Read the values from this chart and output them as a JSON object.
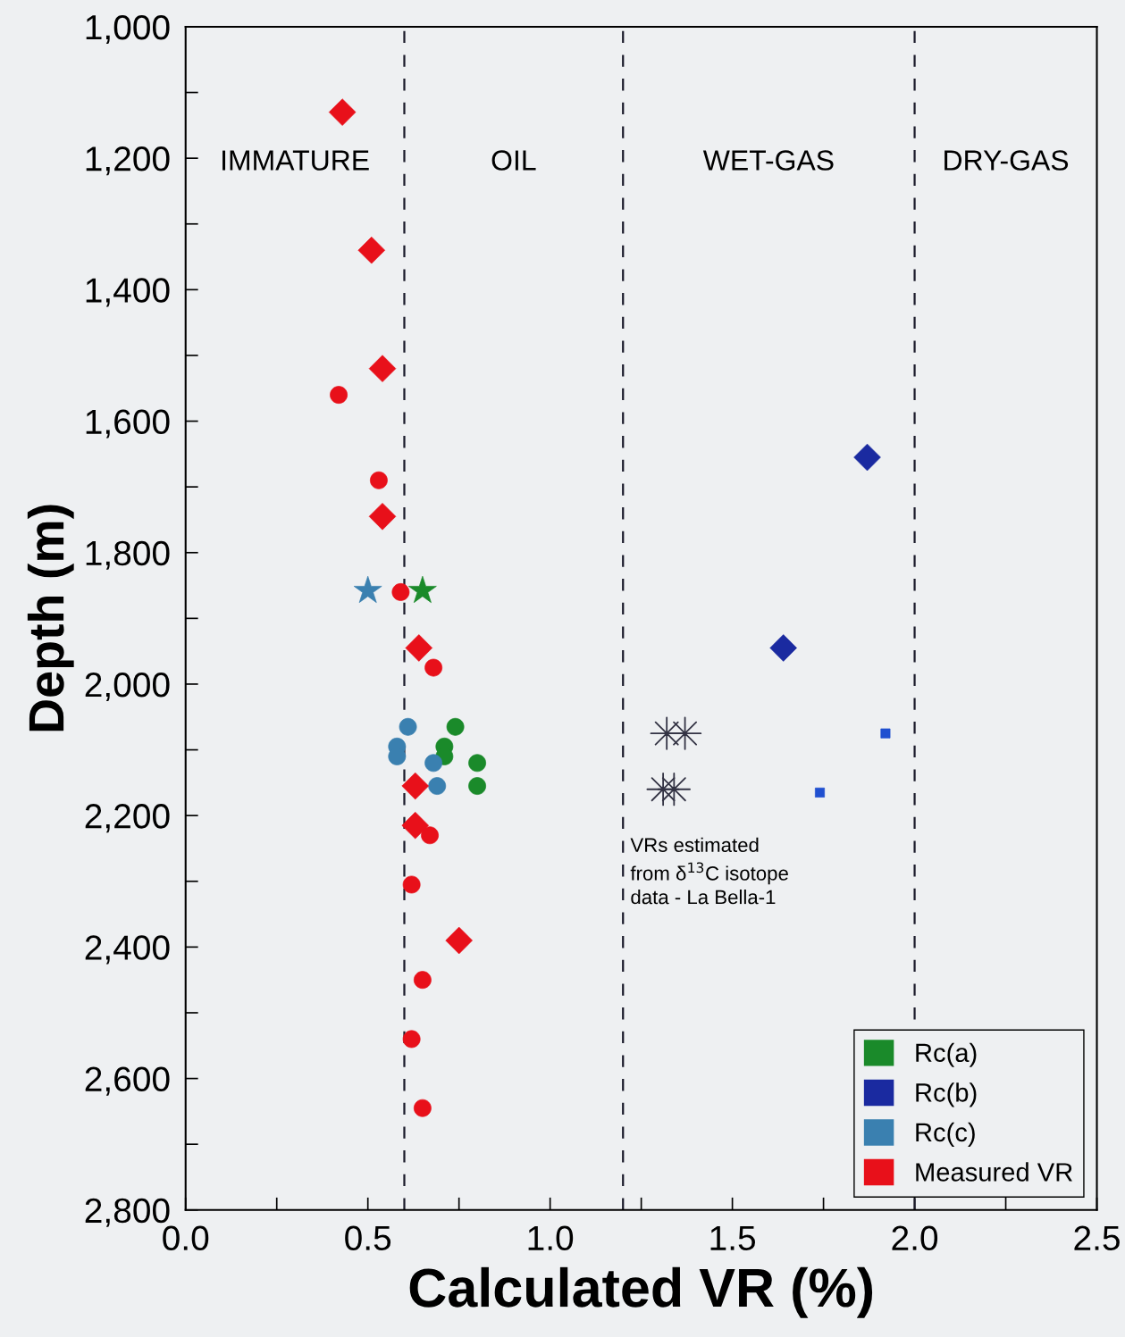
{
  "chart_data": {
    "type": "scatter",
    "xlabel": "Calculated VR (%)",
    "ylabel": "Depth (m)",
    "xlim": [
      0,
      2.5
    ],
    "ylim": [
      2800,
      1000
    ],
    "xticks": [
      {
        "value": 0,
        "label": "0.0"
      },
      {
        "value": 0.25,
        "label": null
      },
      {
        "value": 0.5,
        "label": "0.5"
      },
      {
        "value": 0.75,
        "label": null
      },
      {
        "value": 1.0,
        "label": "1.0"
      },
      {
        "value": 1.25,
        "label": null
      },
      {
        "value": 1.5,
        "label": "1.5"
      },
      {
        "value": 1.75,
        "label": null
      },
      {
        "value": 2.0,
        "label": "2.0"
      },
      {
        "value": 2.25,
        "label": null
      },
      {
        "value": 2.5,
        "label": "2.5"
      }
    ],
    "yticks": [
      {
        "value": 1000,
        "label": "1,000"
      },
      {
        "value": 1100,
        "label": null
      },
      {
        "value": 1200,
        "label": "1,200"
      },
      {
        "value": 1300,
        "label": null
      },
      {
        "value": 1400,
        "label": "1,400"
      },
      {
        "value": 1500,
        "label": null
      },
      {
        "value": 1600,
        "label": "1,600"
      },
      {
        "value": 1700,
        "label": null
      },
      {
        "value": 1800,
        "label": "1,800"
      },
      {
        "value": 1900,
        "label": null
      },
      {
        "value": 2000,
        "label": "2,000"
      },
      {
        "value": 2100,
        "label": null
      },
      {
        "value": 2200,
        "label": "2,200"
      },
      {
        "value": 2300,
        "label": null
      },
      {
        "value": 2400,
        "label": "2,400"
      },
      {
        "value": 2500,
        "label": null
      },
      {
        "value": 2600,
        "label": "2,600"
      },
      {
        "value": 2700,
        "label": null
      },
      {
        "value": 2800,
        "label": "2,800"
      }
    ],
    "grid": false,
    "legend": "bottom right",
    "series": [
      {
        "name": "Rc(a)",
        "color": "#1a8a2a",
        "marker": "circle",
        "x": [
          0.74,
          0.71,
          0.71,
          0.8,
          0.8
        ],
        "values": [
          2065,
          2095,
          2110,
          2120,
          2155
        ]
      },
      {
        "name": "Rc(b)",
        "color": "#1a2aa0",
        "marker": "diamond",
        "x": [
          1.87,
          1.64
        ],
        "values": [
          1655,
          1945
        ]
      },
      {
        "name": "Rc(c)",
        "color": "#3a80b0",
        "marker": "circle",
        "x": [
          0.61,
          0.58,
          0.58,
          0.68,
          0.69
        ],
        "values": [
          2065,
          2095,
          2110,
          2120,
          2155
        ]
      },
      {
        "name": "Measured VR",
        "color": "#e8101a",
        "marker": "diamond",
        "x": [
          0.43,
          0.51,
          0.54,
          0.54,
          0.64,
          0.63,
          0.63,
          0.75
        ],
        "values": [
          1130,
          1340,
          1520,
          1745,
          1945,
          2155,
          2215,
          2390
        ]
      },
      {
        "color": "#e8101a",
        "marker": "circle",
        "x": [
          0.42,
          0.53,
          0.59,
          0.68,
          0.67,
          0.62,
          0.65,
          0.62,
          0.65
        ],
        "values": [
          1560,
          1690,
          1860,
          1975,
          2230,
          2305,
          2450,
          2540,
          2645
        ]
      },
      {
        "color": "#1a8a2a",
        "marker": "star",
        "x": [
          0.65
        ],
        "values": [
          1858
        ]
      },
      {
        "color": "#3a80b0",
        "marker": "star",
        "x": [
          0.5
        ],
        "values": [
          1858
        ]
      },
      {
        "color": "#2050d0",
        "marker": "square",
        "x": [
          1.92,
          1.74
        ],
        "values": [
          2075,
          2165
        ]
      },
      {
        "color": "#333344",
        "marker": "cross",
        "x": [
          1.32,
          1.37,
          1.31,
          1.34
        ],
        "values": [
          2075,
          2075,
          2160,
          2160
        ]
      }
    ],
    "ref_lines": [
      {
        "axis": "x",
        "value": 0.6,
        "color": "#1a1a2a",
        "line_style": "dashed"
      },
      {
        "axis": "x",
        "value": 1.2,
        "color": "#1a1a2a",
        "line_style": "dashed"
      },
      {
        "axis": "x",
        "value": 2.0,
        "color": "#1a1a2a",
        "line_style": "dashed"
      }
    ],
    "annotations": [
      "IMMATURE",
      "OIL",
      "WET-GAS",
      "DRY-GAS",
      "VRs estimated\nfrom δ$^{13}$C isotope\ndata - La Bella-1"
    ]
  }
}
